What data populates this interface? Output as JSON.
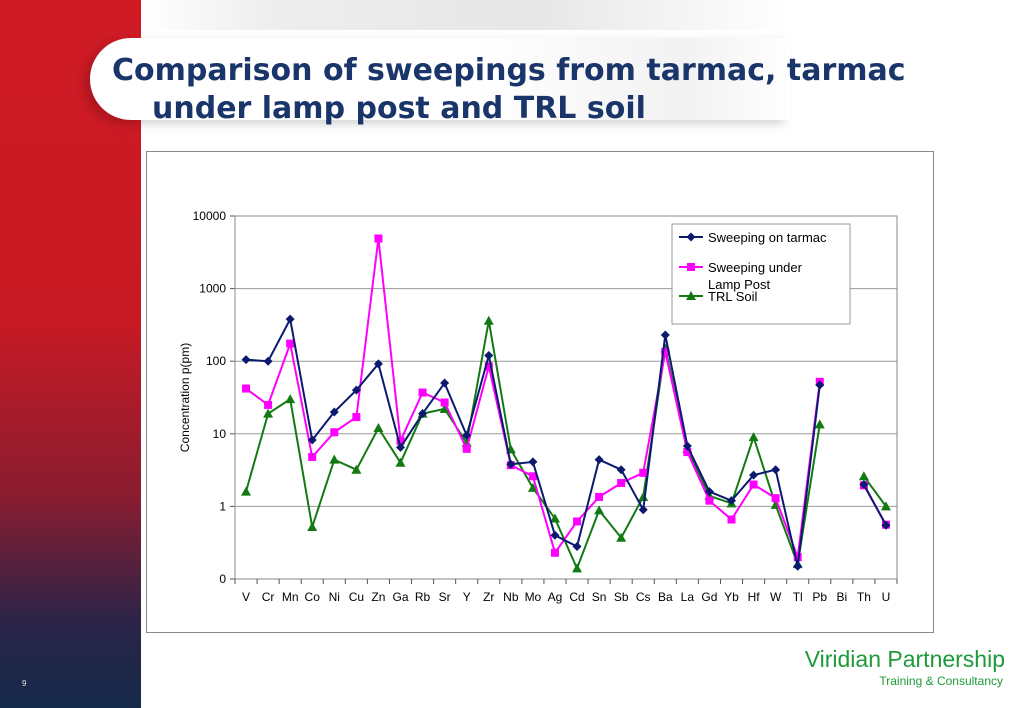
{
  "slide": {
    "title_line1": "Comparison of sweepings from tarmac, tarmac",
    "title_line2": "under lamp post and TRL soil",
    "page_number": "9",
    "brand_name": "Viridian Partnership",
    "brand_tagline": "Training & Consultancy"
  },
  "chart_data": {
    "type": "line",
    "ylabel": "Concentration p(pm)",
    "yscale": "log",
    "yticks": [
      0.1,
      1,
      10,
      100,
      1000,
      10000
    ],
    "ytick_labels": [
      "0",
      "1",
      "10",
      "100",
      "1000",
      "10000"
    ],
    "ylim": [
      0.1,
      10000
    ],
    "grid": "horizontal",
    "legend_position": "top-right",
    "categories": [
      "V",
      "Cr",
      "Mn",
      "Co",
      "Ni",
      "Cu",
      "Zn",
      "Ga",
      "Rb",
      "Sr",
      "Y",
      "Zr",
      "Nb",
      "Mo",
      "Ag",
      "Cd",
      "Sn",
      "Sb",
      "Cs",
      "Ba",
      "La",
      "Gd",
      "Yb",
      "Hf",
      "W",
      "Tl",
      "Pb",
      "Bi",
      "Th",
      "U"
    ],
    "series": [
      {
        "name": "Sweeping on tarmac",
        "color": "#0b1a6e",
        "marker": "diamond",
        "values": [
          105,
          100,
          380,
          8.2,
          20,
          40,
          92,
          6.5,
          19,
          50,
          9.5,
          120,
          3.8,
          4.1,
          0.4,
          0.28,
          4.4,
          3.2,
          0.9,
          230,
          6.8,
          1.6,
          1.2,
          2.7,
          3.2,
          0.15,
          47,
          null,
          2.0,
          0.55
        ]
      },
      {
        "name": "Sweeping under Lamp Post",
        "color": "#ff00ff",
        "marker": "square",
        "values": [
          42,
          25,
          175,
          4.8,
          10.5,
          17,
          4900,
          8,
          37,
          27,
          6.2,
          85,
          3.7,
          2.6,
          0.23,
          0.62,
          1.35,
          2.1,
          2.9,
          135,
          5.6,
          1.2,
          0.66,
          2.0,
          1.3,
          0.2,
          52,
          null,
          1.95,
          0.56
        ]
      },
      {
        "name": "TRL Soil",
        "color": "#137a13",
        "marker": "triangle",
        "values": [
          1.6,
          19,
          30,
          0.52,
          4.4,
          3.2,
          12,
          4.0,
          19,
          22,
          7.5,
          360,
          6.1,
          1.8,
          0.68,
          0.14,
          0.88,
          0.37,
          1.35,
          150,
          6.2,
          1.4,
          1.1,
          9,
          1.05,
          0.16,
          13.5,
          null,
          2.6,
          1.0
        ]
      }
    ]
  }
}
